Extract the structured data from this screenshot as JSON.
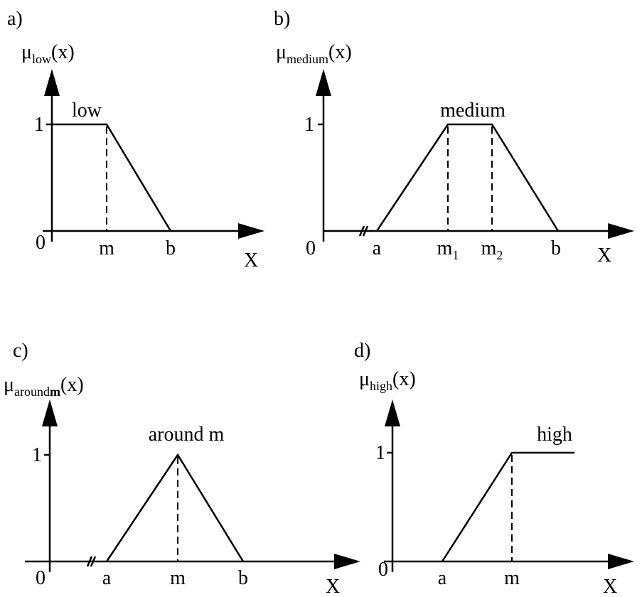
{
  "panels": [
    {
      "label": "a)",
      "y_label": {
        "base": "μ",
        "sub": "low",
        "tail": "(x)"
      },
      "one": "1",
      "zero": "0",
      "x_ticks": [
        {
          "base": "m"
        },
        {
          "base": "b"
        }
      ],
      "x_axis": "X",
      "curve": "low"
    },
    {
      "label": "b)",
      "y_label": {
        "base": "μ",
        "sub": "medium",
        "tail": "(x)"
      },
      "one": "1",
      "zero": "0",
      "x_ticks": [
        {
          "base": "a"
        },
        {
          "base": "m",
          "sub": "1"
        },
        {
          "base": "m",
          "sub": "2"
        },
        {
          "base": "b"
        }
      ],
      "x_axis": "X",
      "curve": "medium"
    },
    {
      "label": "c)",
      "y_label": {
        "base": "μ",
        "sub": "around",
        "sub_bold": "m",
        "tail": "(x)"
      },
      "one": "1",
      "zero": "0",
      "x_ticks": [
        {
          "base": "a"
        },
        {
          "base": "m"
        },
        {
          "base": "b"
        }
      ],
      "x_axis": "X",
      "curve": "around m"
    },
    {
      "label": "d)",
      "y_label": {
        "base": "μ",
        "sub": "high",
        "tail": "(x)"
      },
      "one": "1",
      "zero": "0",
      "x_ticks": [
        {
          "base": "a"
        },
        {
          "base": "m"
        }
      ],
      "x_axis": "X",
      "curve": "high"
    }
  ]
}
